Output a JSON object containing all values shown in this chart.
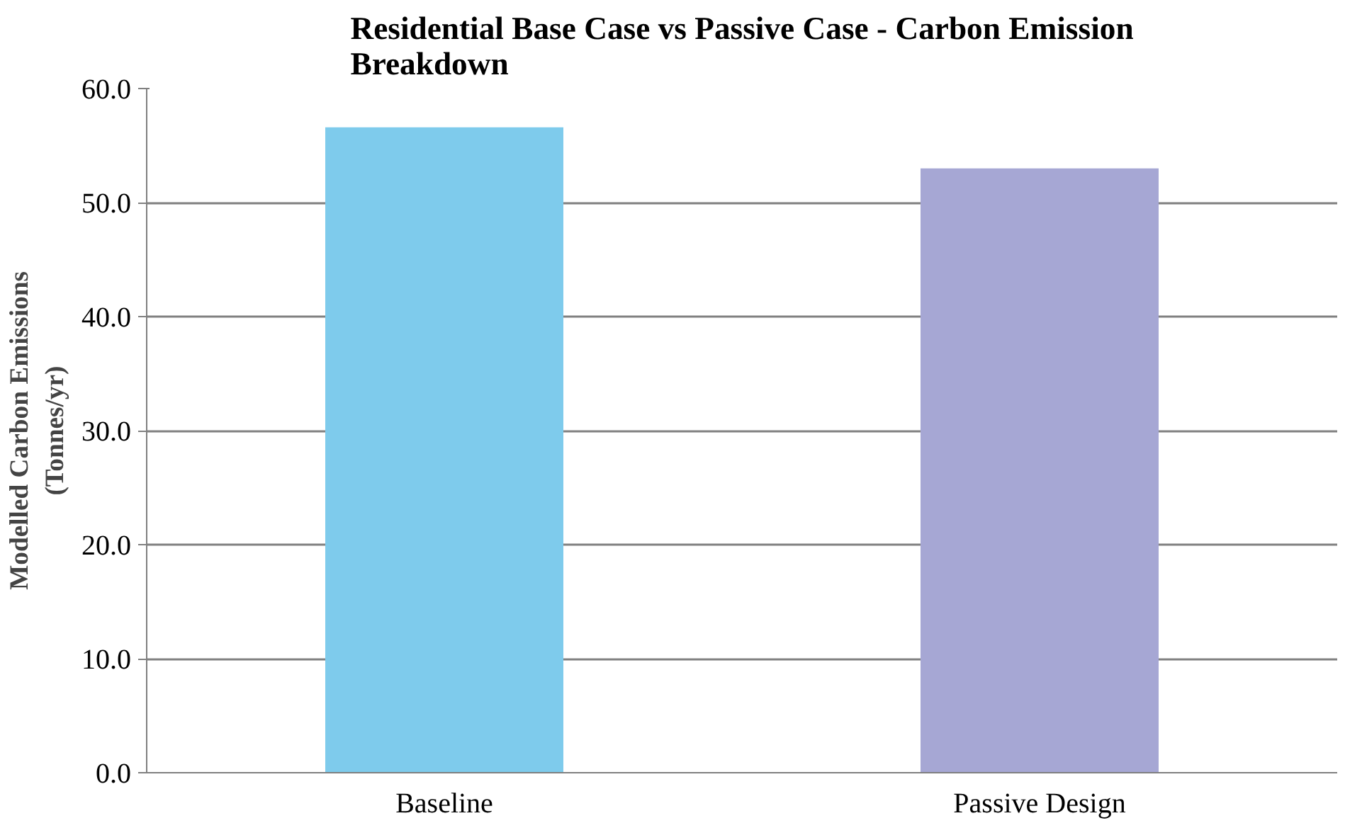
{
  "chart_data": {
    "type": "bar",
    "title": "Residential Base Case vs Passive Case - Carbon Emission\nBreakdown",
    "ylabel": "Modelled Carbon Emissions\n(Tonnes/yr)",
    "categories": [
      "Baseline",
      "Passive Design"
    ],
    "values": [
      56.6,
      53.0
    ],
    "colors": [
      "#7ecbec",
      "#a6a7d4"
    ],
    "ylim": [
      0,
      60
    ],
    "yticks": [
      {
        "value": 0,
        "label": "0.0"
      },
      {
        "value": 10,
        "label": "10.0"
      },
      {
        "value": 20,
        "label": "20.0"
      },
      {
        "value": 30,
        "label": "30.0"
      },
      {
        "value": 40,
        "label": "40.0"
      },
      {
        "value": 50,
        "label": "50.0"
      },
      {
        "value": 60,
        "label": "60.0"
      }
    ],
    "grid": "y"
  }
}
